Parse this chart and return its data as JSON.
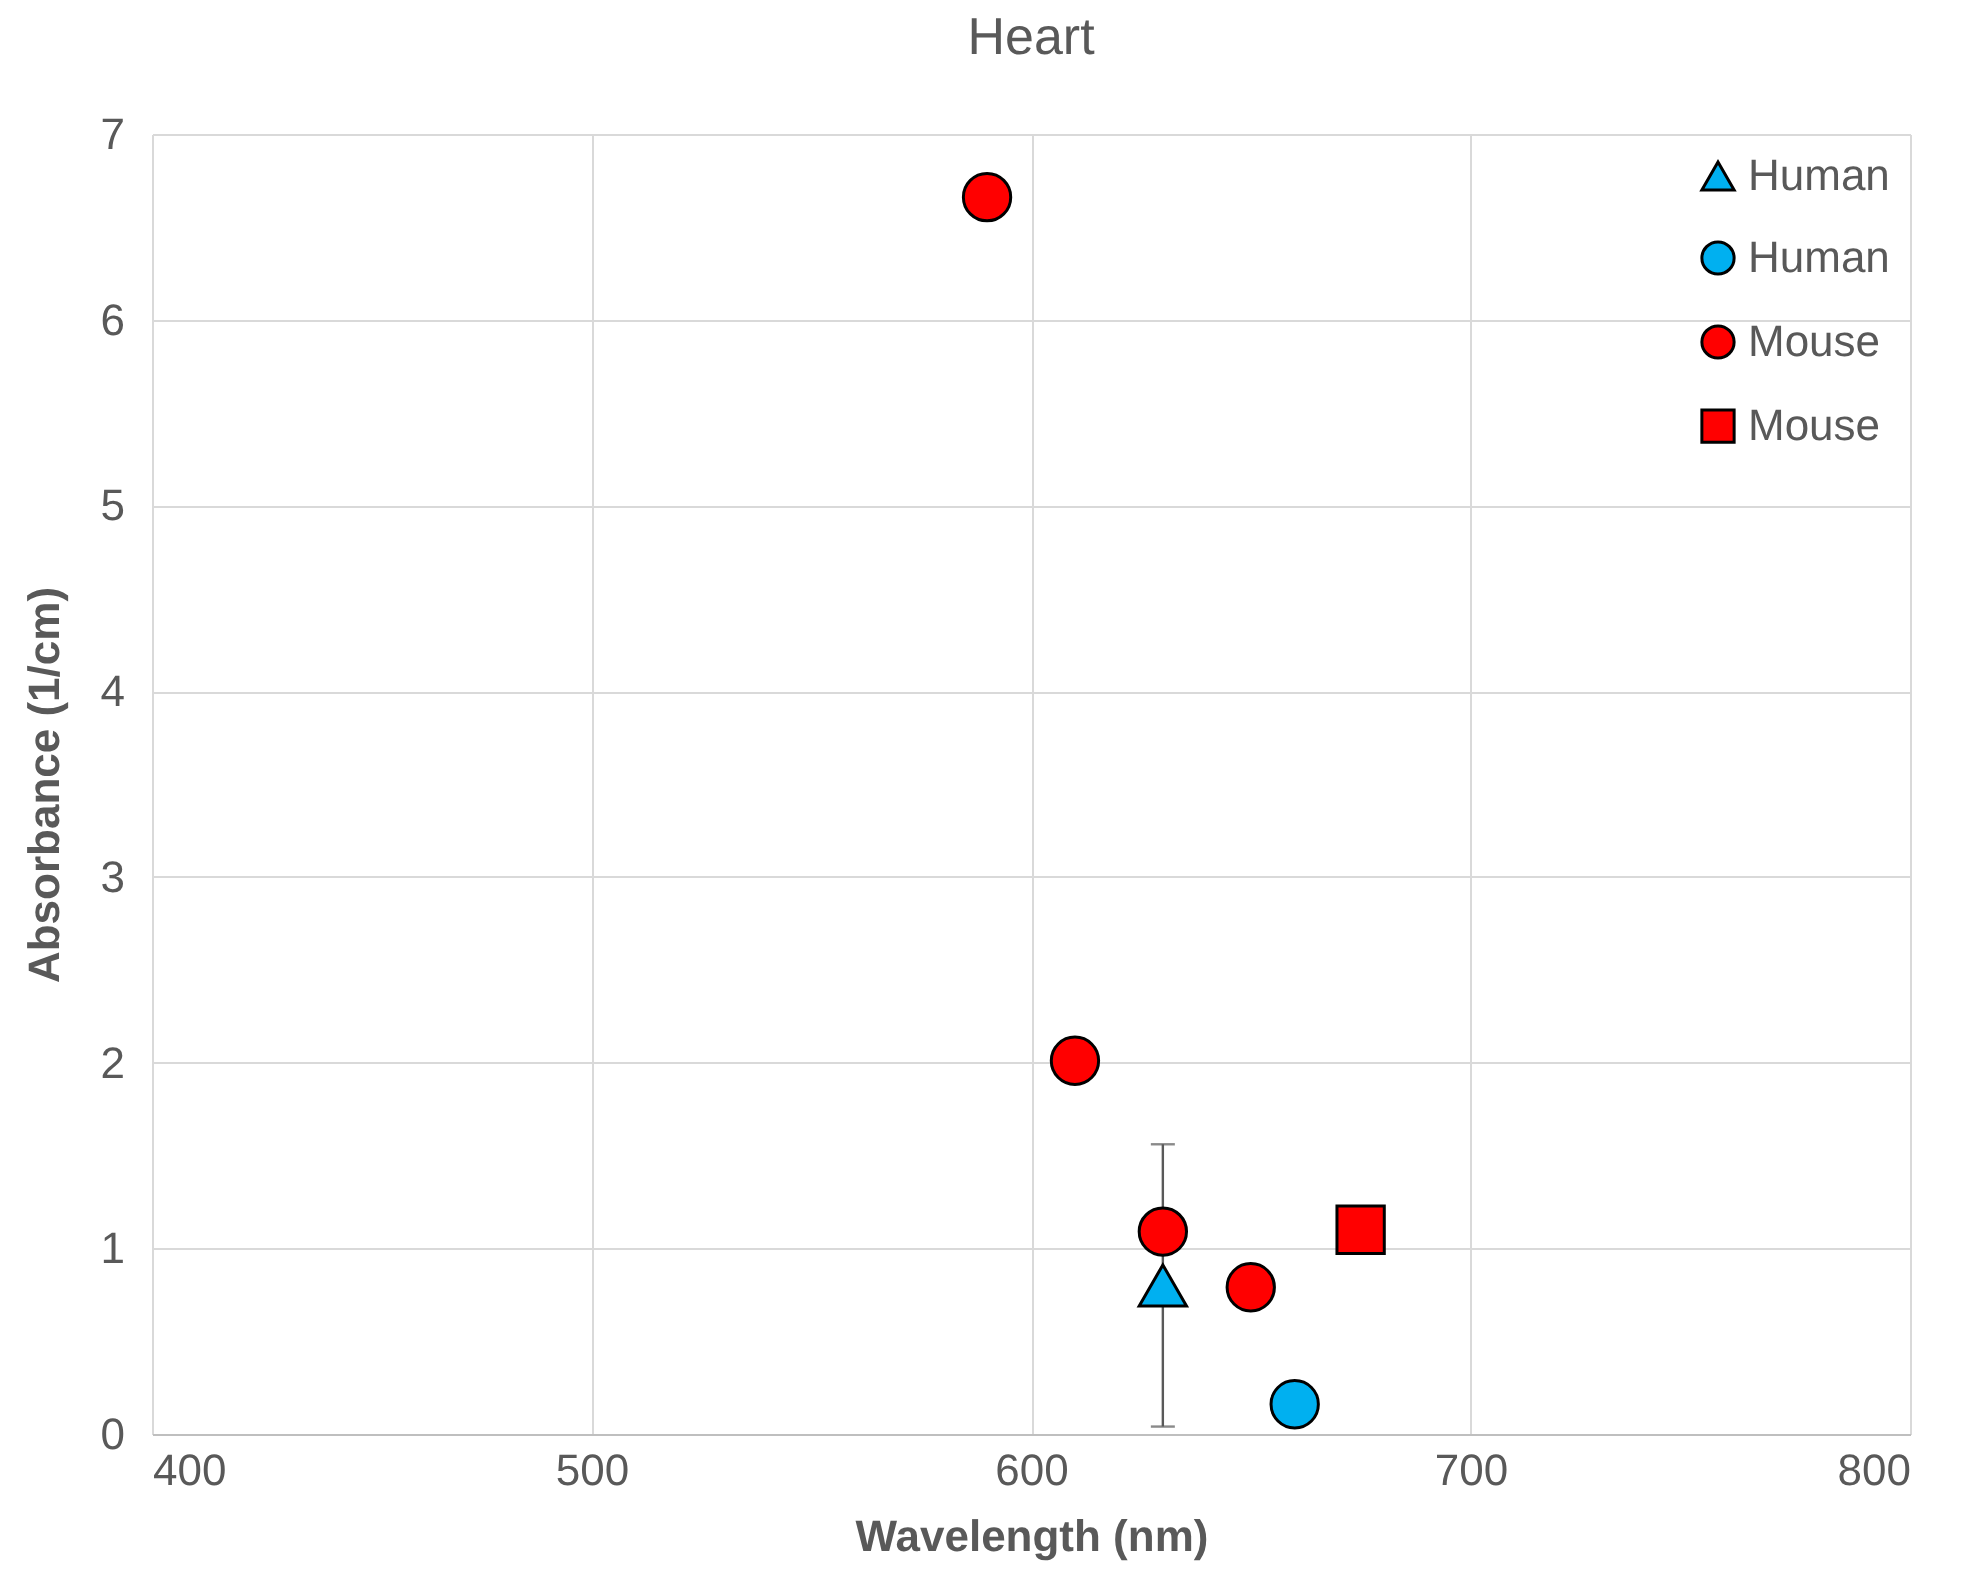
{
  "chart_data": {
    "type": "scatter",
    "title": "Heart",
    "xlabel": "Wavelength (nm)",
    "ylabel": "Absorbance (1/cm)",
    "xlim": [
      400,
      800
    ],
    "ylim": [
      0,
      7
    ],
    "xticks": [
      400,
      500,
      600,
      700,
      800
    ],
    "yticks": [
      0,
      1,
      2,
      3,
      4,
      5,
      6,
      7
    ],
    "grid": true,
    "legend": "top right",
    "series": [
      {
        "name": "Human",
        "color": "#00b0f0",
        "marker": "triangle",
        "x": [
          630
        ],
        "values": [
          0.8
        ],
        "errors": [
          0.76
        ]
      },
      {
        "name": "Human",
        "color": "#00b0f0",
        "marker": "circle",
        "x": [
          660
        ],
        "values": [
          0.16
        ]
      },
      {
        "name": "Mouse",
        "color": "#ff0000",
        "marker": "circle",
        "x": [
          590,
          610,
          630,
          650
        ],
        "values": [
          6.66,
          2.01,
          1.09,
          0.79
        ]
      },
      {
        "name": "Mouse",
        "color": "#ff0000",
        "marker": "square",
        "x": [
          675
        ],
        "values": [
          1.1
        ]
      }
    ]
  }
}
